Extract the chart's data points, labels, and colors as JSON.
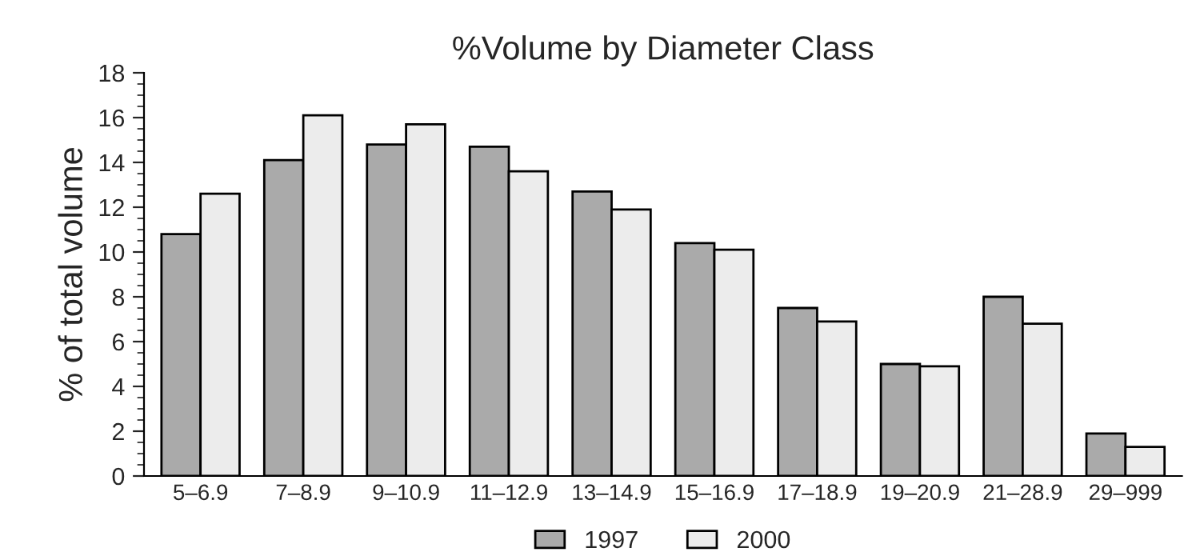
{
  "chart_data": {
    "type": "bar",
    "title": "%Volume by Diameter Class",
    "ylabel": "% of total volume",
    "categories": [
      "5–6.9",
      "7–8.9",
      "9–10.9",
      "11–12.9",
      "13–14.9",
      "15–16.9",
      "17–18.9",
      "19–20.9",
      "21–28.9",
      "29–999"
    ],
    "series": [
      {
        "name": "1997",
        "color": "#aaaaaa",
        "values": [
          10.8,
          14.1,
          14.8,
          14.7,
          12.7,
          10.4,
          7.5,
          5.0,
          8.0,
          1.9
        ]
      },
      {
        "name": "2000",
        "color": "#ececec",
        "values": [
          12.6,
          16.1,
          15.7,
          13.6,
          11.9,
          10.1,
          6.9,
          4.9,
          6.8,
          1.3
        ]
      }
    ],
    "ylim": [
      0,
      18
    ],
    "yticks": [
      0,
      2,
      4,
      6,
      8,
      10,
      12,
      14,
      16,
      18
    ],
    "grid": false,
    "legend": "bottom"
  }
}
